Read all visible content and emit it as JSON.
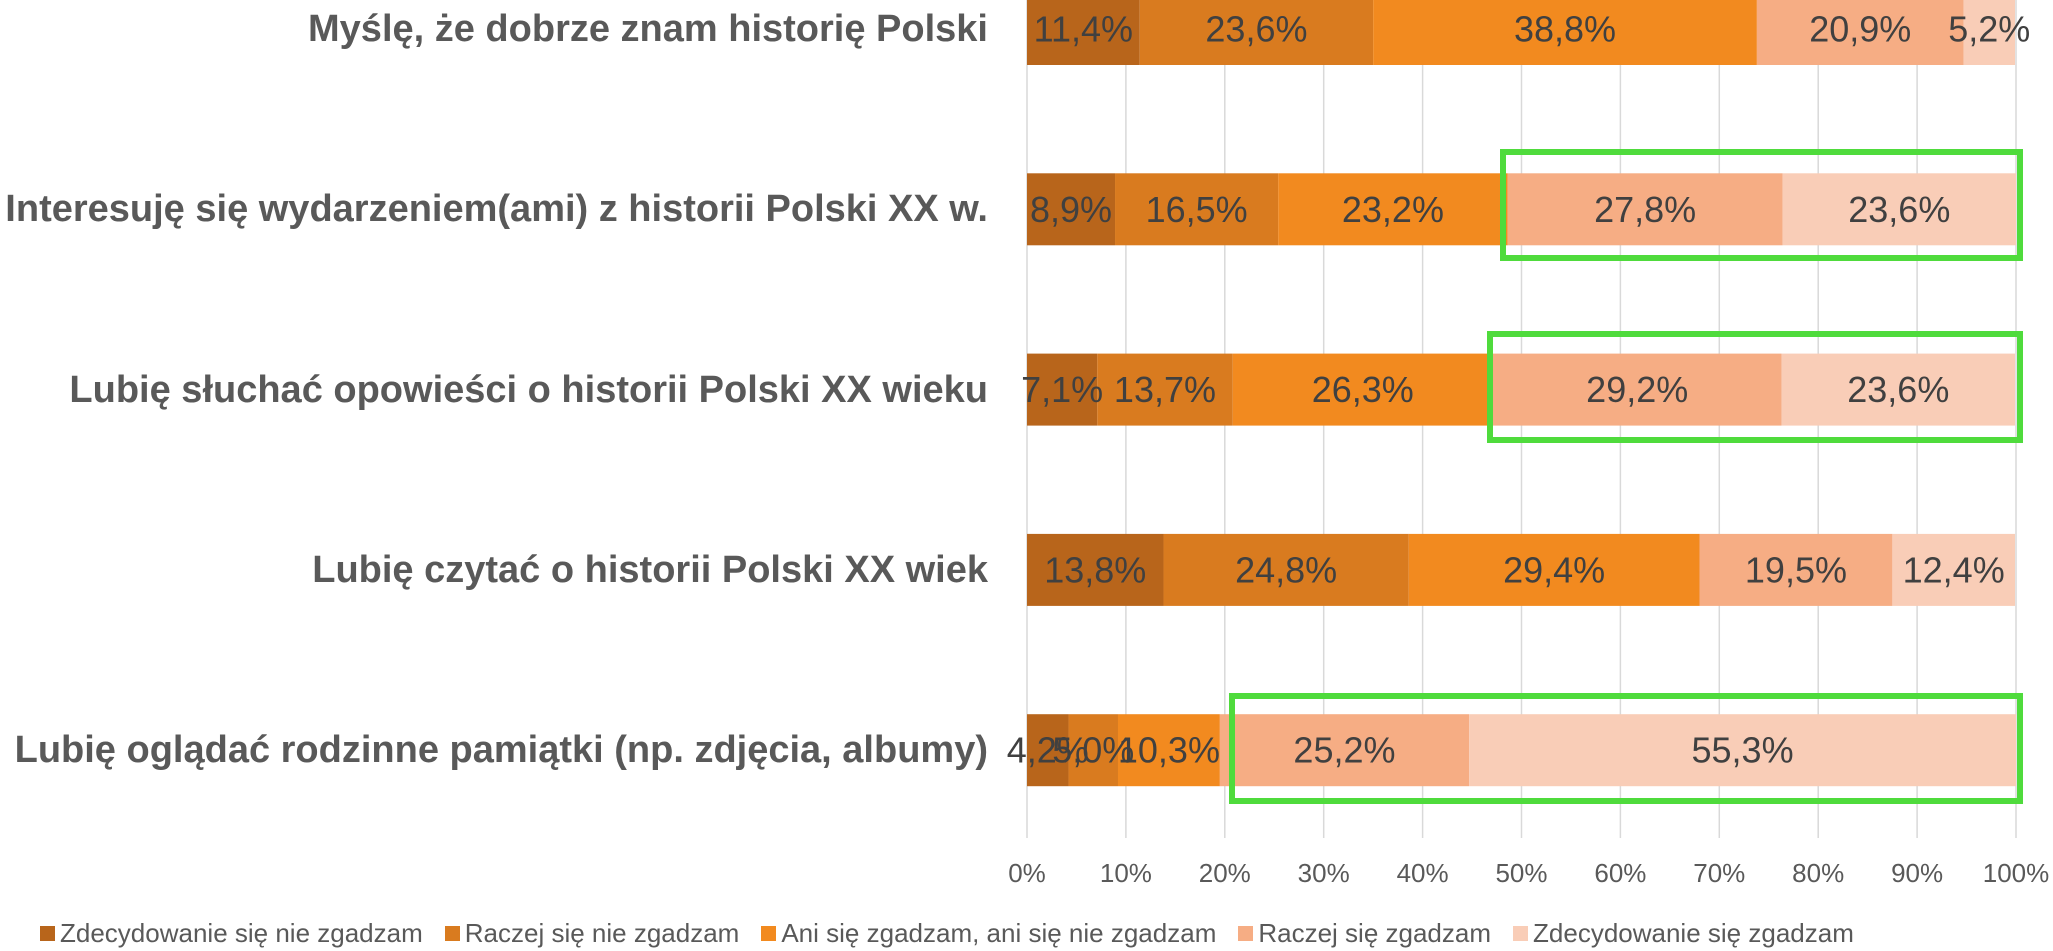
{
  "chart_data": {
    "type": "stacked_barh",
    "categories": [
      "Myślę, że dobrze znam historię Polski",
      "Interesuję się wydarzeniem(ami) z historii Polski XX w.",
      "Lubię słuchać opowieści o historii Polski XX wieku",
      "Lubię czytać o historii Polski XX wiek",
      "Lubię oglądać rodzinne pamiątki (np. zdjęcia, albumy)"
    ],
    "series": [
      {
        "name": "Zdecydowanie się nie zgadzam",
        "color": "#b8651b",
        "values": [
          11.4,
          8.9,
          7.1,
          13.8,
          4.2
        ],
        "value_labels": [
          "11,4%",
          "8,9%",
          "7,1%",
          "13,8%",
          "4,2%"
        ]
      },
      {
        "name": "Raczej się nie zgadzam",
        "color": "#d97b1f",
        "values": [
          23.6,
          16.5,
          13.7,
          24.8,
          5.0
        ],
        "value_labels": [
          "23,6%",
          "16,5%",
          "13,7%",
          "24,8%",
          "5,0%"
        ]
      },
      {
        "name": "Ani się zgadzam, ani się nie zgadzam",
        "color": "#f28a1f",
        "values": [
          38.8,
          23.2,
          26.3,
          29.4,
          10.3
        ],
        "value_labels": [
          "38,8%",
          "23,2%",
          "26,3%",
          "29,4%",
          "10,3%"
        ]
      },
      {
        "name": "Raczej się zgadzam",
        "color": "#f6ad84",
        "values": [
          20.9,
          27.8,
          29.2,
          19.5,
          25.2
        ],
        "value_labels": [
          "20,9%",
          "27,8%",
          "29,2%",
          "19,5%",
          "25,2%"
        ]
      },
      {
        "name": "Zdecydowanie się zgadzam",
        "color": "#f9cdb7",
        "values": [
          5.2,
          23.6,
          23.6,
          12.4,
          55.3
        ],
        "value_labels": [
          "5,2%",
          "23,6%",
          "23,6%",
          "12,4%",
          "55,3%"
        ]
      }
    ],
    "xlim": [
      0,
      100
    ],
    "xticks": [
      {
        "value": 0,
        "label": "0%"
      },
      {
        "value": 10,
        "label": "10%"
      },
      {
        "value": 20,
        "label": "20%"
      },
      {
        "value": 30,
        "label": "30%"
      },
      {
        "value": 40,
        "label": "40%"
      },
      {
        "value": 50,
        "label": "50%"
      },
      {
        "value": 60,
        "label": "60%"
      },
      {
        "value": 70,
        "label": "70%"
      },
      {
        "value": 80,
        "label": "80%"
      },
      {
        "value": 90,
        "label": "90%"
      },
      {
        "value": 100,
        "label": "100%"
      }
    ],
    "grid": true
  }
}
